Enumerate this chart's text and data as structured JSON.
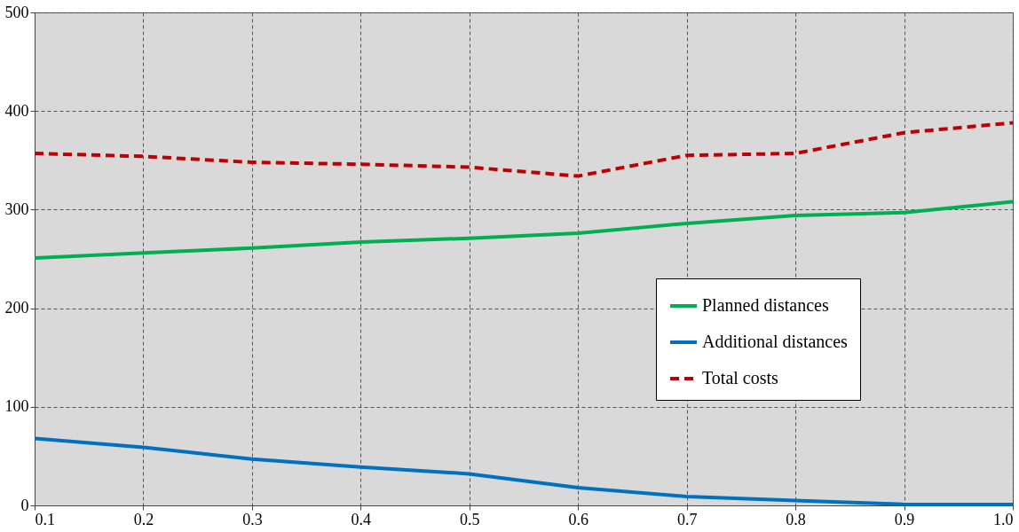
{
  "chart_data": {
    "type": "line",
    "x": [
      0.1,
      0.2,
      0.3,
      0.4,
      0.5,
      0.6,
      0.7,
      0.8,
      0.9,
      1.0
    ],
    "xlim": [
      0.1,
      1.0
    ],
    "xticks": [
      {
        "value": 0.1,
        "label": "0.1"
      },
      {
        "value": 0.2,
        "label": "0.2"
      },
      {
        "value": 0.3,
        "label": "0.3"
      },
      {
        "value": 0.4,
        "label": "0.4"
      },
      {
        "value": 0.5,
        "label": "0.5"
      },
      {
        "value": 0.6,
        "label": "0.6"
      },
      {
        "value": 0.7,
        "label": "0.7"
      },
      {
        "value": 0.8,
        "label": "0.8"
      },
      {
        "value": 0.9,
        "label": "0.9"
      },
      {
        "value": 1.0,
        "label": "1.0"
      }
    ],
    "ylim": [
      0,
      500
    ],
    "yticks": [
      0,
      100,
      200,
      300,
      400,
      500
    ],
    "grid": true,
    "legend": "right",
    "marker": "none",
    "series": [
      {
        "name": "Planned distances",
        "color": "#00b050",
        "line_style": "solid",
        "values": [
          251,
          256,
          261,
          267,
          271,
          276,
          286,
          294,
          297,
          308
        ]
      },
      {
        "name": "Additional distances",
        "color": "#0070c0",
        "line_style": "solid",
        "values": [
          68,
          59,
          47,
          39,
          32,
          18,
          9,
          5,
          1,
          1
        ]
      },
      {
        "name": "Total costs",
        "color": "#c00000",
        "line_style": "dashed",
        "values": [
          357,
          354,
          348,
          346,
          343,
          334,
          355,
          357,
          378,
          388
        ]
      }
    ]
  }
}
